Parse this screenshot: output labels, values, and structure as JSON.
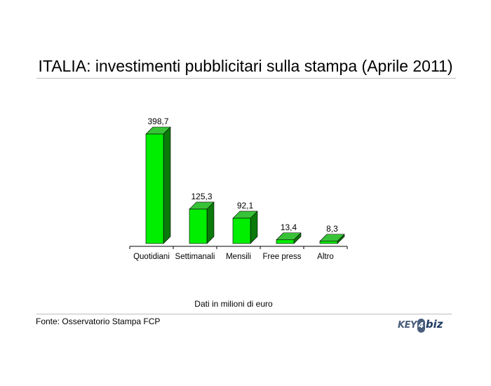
{
  "title": "ITALIA: investimenti pubblicitari sulla stampa (Aprile 2011)",
  "note": "Dati in milioni di euro",
  "source": "Fonte: Osservatorio Stampa FCP",
  "logo": {
    "text": "KEY4biz",
    "part1": "KEY",
    "part2": "4",
    "part3": "biz"
  },
  "colors": {
    "bar_front": "#00ee00",
    "bar_top": "#38c238",
    "bar_side": "#0a7a0a",
    "axis": "#000000"
  },
  "chart_data": {
    "type": "bar",
    "style": "3d-column",
    "categories": [
      "Quotidiani",
      "Settimanali",
      "Mensili",
      "Free press",
      "Altro"
    ],
    "values": [
      398.7,
      125.3,
      92.1,
      13.4,
      8.3
    ],
    "value_labels": [
      "398,7",
      "125,3",
      "92,1",
      "13,4",
      "8,3"
    ],
    "title": "",
    "xlabel": "",
    "ylabel": "",
    "ylim": [
      0,
      398.7
    ],
    "grid": false,
    "legend": "none"
  }
}
